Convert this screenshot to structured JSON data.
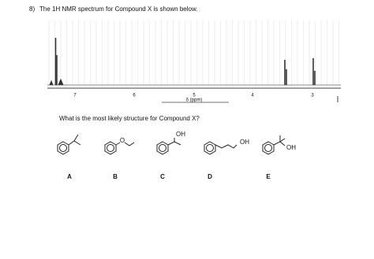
{
  "question": {
    "number": "8)",
    "text": "The 1H NMR spectrum for Compound X is shown below."
  },
  "spectrum": {
    "ticks": [
      7,
      6,
      5,
      4,
      3
    ],
    "axis_label": "δ (ppm)"
  },
  "prompt": "What is the most likely structure for Compound X?",
  "options": [
    {
      "label": "A"
    },
    {
      "label": "B",
      "atom": "O"
    },
    {
      "label": "C",
      "group": "OH"
    },
    {
      "label": "D",
      "group": "OH"
    },
    {
      "label": "E",
      "group": "OH"
    }
  ]
}
